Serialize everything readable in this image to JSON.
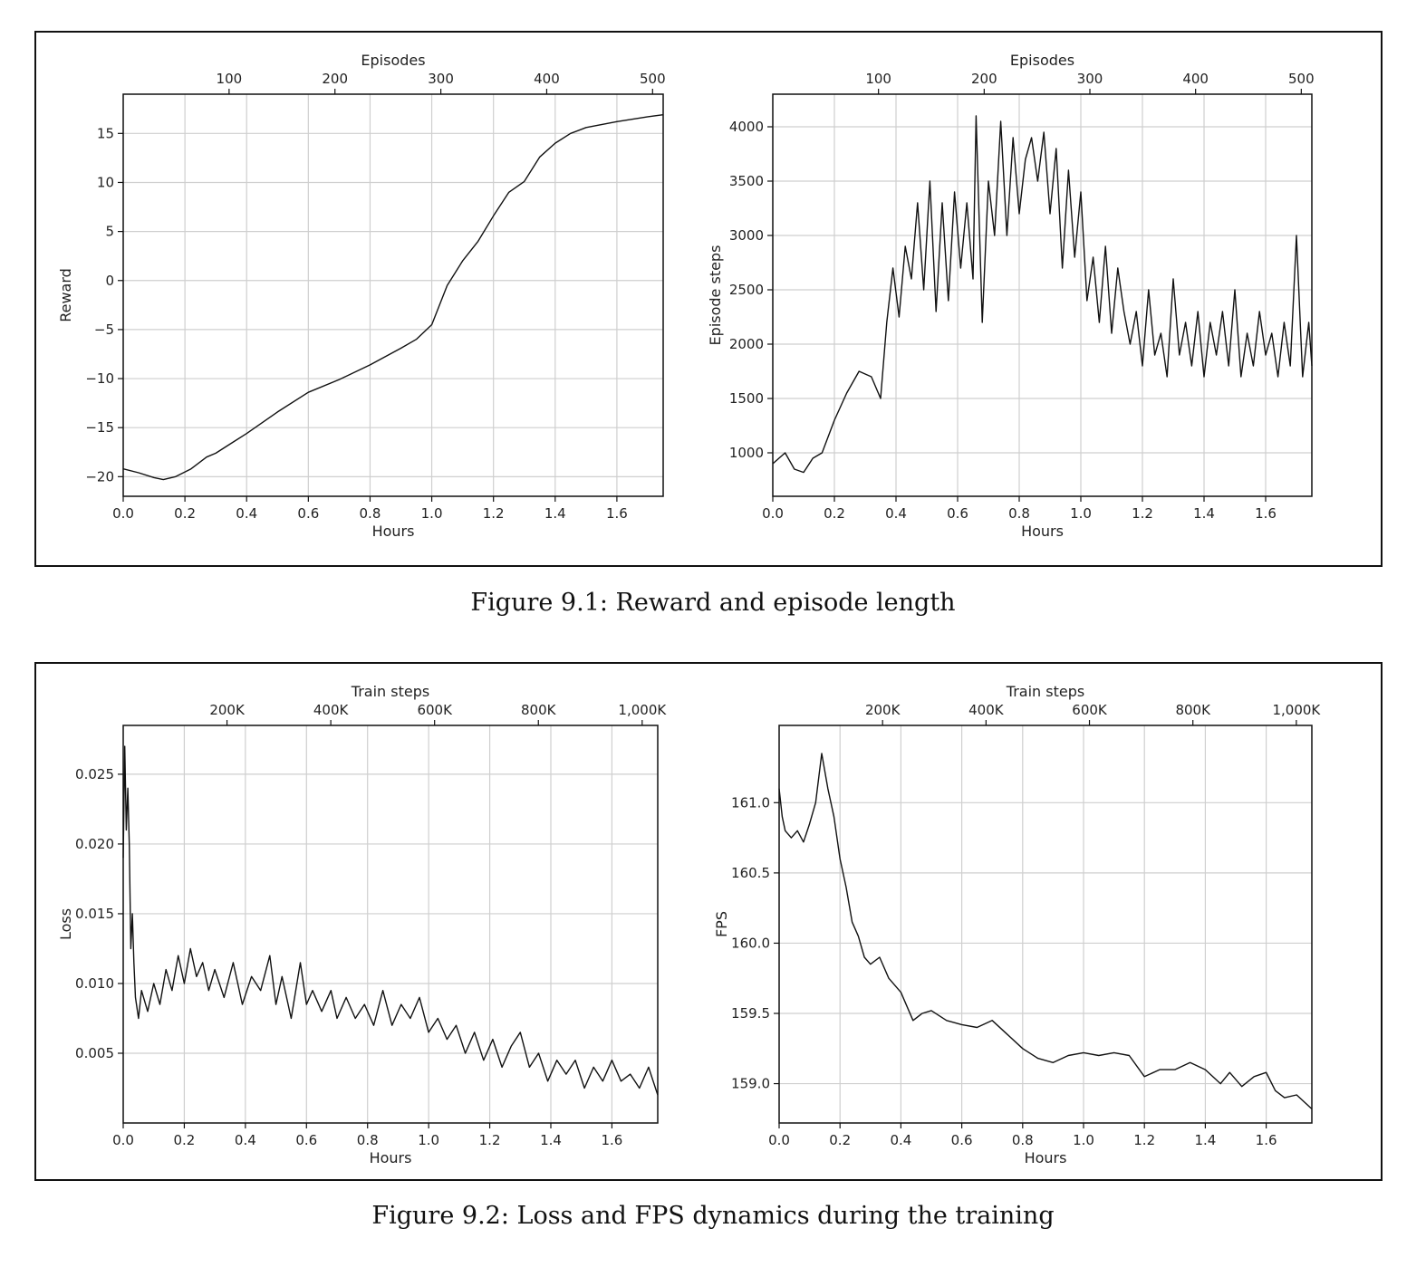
{
  "figures": [
    {
      "caption": "Figure 9.1: Reward and episode length"
    },
    {
      "caption": "Figure 9.2: Loss and FPS dynamics during the training"
    }
  ],
  "chart_data": [
    {
      "type": "line",
      "xlabel": "Hours",
      "ylabel": "Reward",
      "xlim": [
        0,
        1.75
      ],
      "ylim": [
        -22,
        19
      ],
      "xticks": [
        "0.0",
        "0.2",
        "0.4",
        "0.6",
        "0.8",
        "1.0",
        "1.2",
        "1.4",
        "1.6"
      ],
      "yticks": [
        "15",
        "10",
        "5",
        "0",
        "−5",
        "−10",
        "−15",
        "−20"
      ],
      "top_axis": {
        "label": "Episodes",
        "ticks": [
          "100",
          "200",
          "300",
          "400",
          "500"
        ],
        "range": [
          0,
          510
        ]
      },
      "grid": true,
      "series": [
        {
          "x": [
            0,
            0.05,
            0.1,
            0.13,
            0.17,
            0.22,
            0.27,
            0.3,
            0.35,
            0.4,
            0.5,
            0.6,
            0.7,
            0.8,
            0.9,
            0.95,
            1.0,
            1.05,
            1.1,
            1.15,
            1.2,
            1.25,
            1.3,
            1.35,
            1.4,
            1.45,
            1.5,
            1.6,
            1.7,
            1.75
          ],
          "y": [
            -19.2,
            -19.6,
            -20.1,
            -20.3,
            -20.0,
            -19.2,
            -18.0,
            -17.6,
            -16.6,
            -15.6,
            -13.4,
            -11.4,
            -10.1,
            -8.6,
            -6.9,
            -6.0,
            -4.5,
            -0.5,
            2.0,
            4.0,
            6.6,
            9.0,
            10.1,
            12.6,
            14.0,
            15.0,
            15.6,
            16.2,
            16.7,
            16.9
          ]
        }
      ]
    },
    {
      "type": "line",
      "xlabel": "Hours",
      "ylabel": "Episode steps",
      "xlim": [
        0,
        1.75
      ],
      "ylim": [
        600,
        4300
      ],
      "xticks": [
        "0.0",
        "0.2",
        "0.4",
        "0.6",
        "0.8",
        "1.0",
        "1.2",
        "1.4",
        "1.6"
      ],
      "yticks": [
        "4000",
        "3500",
        "3000",
        "2500",
        "2000",
        "1500",
        "1000"
      ],
      "top_axis": {
        "label": "Episodes",
        "ticks": [
          "100",
          "200",
          "300",
          "400",
          "500"
        ],
        "range": [
          0,
          510
        ]
      },
      "grid": true,
      "series": [
        {
          "x": [
            0,
            0.04,
            0.07,
            0.1,
            0.13,
            0.16,
            0.2,
            0.24,
            0.28,
            0.32,
            0.35,
            0.37,
            0.39,
            0.41,
            0.43,
            0.45,
            0.47,
            0.49,
            0.51,
            0.53,
            0.55,
            0.57,
            0.59,
            0.61,
            0.63,
            0.65,
            0.66,
            0.68,
            0.7,
            0.72,
            0.74,
            0.76,
            0.78,
            0.8,
            0.82,
            0.84,
            0.86,
            0.88,
            0.9,
            0.92,
            0.94,
            0.96,
            0.98,
            1.0,
            1.02,
            1.04,
            1.06,
            1.08,
            1.1,
            1.12,
            1.14,
            1.16,
            1.18,
            1.2,
            1.22,
            1.24,
            1.26,
            1.28,
            1.3,
            1.32,
            1.34,
            1.36,
            1.38,
            1.4,
            1.42,
            1.44,
            1.46,
            1.48,
            1.5,
            1.52,
            1.54,
            1.56,
            1.58,
            1.6,
            1.62,
            1.64,
            1.66,
            1.68,
            1.7,
            1.72,
            1.74,
            1.75
          ],
          "y": [
            900,
            1000,
            850,
            820,
            950,
            1000,
            1300,
            1550,
            1750,
            1700,
            1500,
            2200,
            2700,
            2250,
            2900,
            2600,
            3300,
            2500,
            3500,
            2300,
            3300,
            2400,
            3400,
            2700,
            3300,
            2600,
            4100,
            2200,
            3500,
            3000,
            4050,
            3000,
            3900,
            3200,
            3700,
            3900,
            3500,
            3950,
            3200,
            3800,
            2700,
            3600,
            2800,
            3400,
            2400,
            2800,
            2200,
            2900,
            2100,
            2700,
            2300,
            2000,
            2300,
            1800,
            2500,
            1900,
            2100,
            1700,
            2600,
            1900,
            2200,
            1800,
            2300,
            1700,
            2200,
            1900,
            2300,
            1800,
            2500,
            1700,
            2100,
            1800,
            2300,
            1900,
            2100,
            1700,
            2200,
            1800,
            3000,
            1700,
            2200,
            1800
          ]
        }
      ]
    },
    {
      "type": "line",
      "xlabel": "Hours",
      "ylabel": "Loss",
      "xlim": [
        0,
        1.75
      ],
      "ylim": [
        0,
        0.0285
      ],
      "xticks": [
        "0.0",
        "0.2",
        "0.4",
        "0.6",
        "0.8",
        "1.0",
        "1.2",
        "1.4",
        "1.6"
      ],
      "yticks": [
        "0.025",
        "0.020",
        "0.015",
        "0.010",
        "0.005"
      ],
      "top_axis": {
        "label": "Train steps",
        "ticks": [
          "200K",
          "400K",
          "600K",
          "800K",
          "1,000K"
        ],
        "range": [
          0,
          1030000
        ]
      },
      "grid": true,
      "series": [
        {
          "x": [
            0,
            0.005,
            0.01,
            0.015,
            0.02,
            0.025,
            0.03,
            0.035,
            0.04,
            0.05,
            0.06,
            0.08,
            0.1,
            0.12,
            0.14,
            0.16,
            0.18,
            0.2,
            0.22,
            0.24,
            0.26,
            0.28,
            0.3,
            0.33,
            0.36,
            0.39,
            0.42,
            0.45,
            0.48,
            0.5,
            0.52,
            0.55,
            0.58,
            0.6,
            0.62,
            0.65,
            0.68,
            0.7,
            0.73,
            0.76,
            0.79,
            0.82,
            0.85,
            0.88,
            0.91,
            0.94,
            0.97,
            1.0,
            1.03,
            1.06,
            1.09,
            1.12,
            1.15,
            1.18,
            1.21,
            1.24,
            1.27,
            1.3,
            1.33,
            1.36,
            1.39,
            1.42,
            1.45,
            1.48,
            1.51,
            1.54,
            1.57,
            1.6,
            1.63,
            1.66,
            1.69,
            1.72,
            1.75
          ],
          "y": [
            0.019,
            0.027,
            0.021,
            0.024,
            0.02,
            0.0125,
            0.015,
            0.0115,
            0.009,
            0.0075,
            0.0095,
            0.008,
            0.01,
            0.0085,
            0.011,
            0.0095,
            0.012,
            0.01,
            0.0125,
            0.0105,
            0.0115,
            0.0095,
            0.011,
            0.009,
            0.0115,
            0.0085,
            0.0105,
            0.0095,
            0.012,
            0.0085,
            0.0105,
            0.0075,
            0.0115,
            0.0085,
            0.0095,
            0.008,
            0.0095,
            0.0075,
            0.009,
            0.0075,
            0.0085,
            0.007,
            0.0095,
            0.007,
            0.0085,
            0.0075,
            0.009,
            0.0065,
            0.0075,
            0.006,
            0.007,
            0.005,
            0.0065,
            0.0045,
            0.006,
            0.004,
            0.0055,
            0.0065,
            0.004,
            0.005,
            0.003,
            0.0045,
            0.0035,
            0.0045,
            0.0025,
            0.004,
            0.003,
            0.0045,
            0.003,
            0.0035,
            0.0025,
            0.004,
            0.002
          ]
        }
      ]
    },
    {
      "type": "line",
      "xlabel": "Hours",
      "ylabel": "FPS",
      "xlim": [
        0,
        1.75
      ],
      "ylim": [
        158.72,
        161.55
      ],
      "xticks": [
        "0.0",
        "0.2",
        "0.4",
        "0.6",
        "0.8",
        "1.0",
        "1.2",
        "1.4",
        "1.6"
      ],
      "yticks": [
        "161.0",
        "160.5",
        "160.0",
        "159.5",
        "159.0"
      ],
      "top_axis": {
        "label": "Train steps",
        "ticks": [
          "200K",
          "400K",
          "600K",
          "800K",
          "1,000K"
        ],
        "range": [
          0,
          1030000
        ]
      },
      "grid": true,
      "series": [
        {
          "x": [
            0,
            0.01,
            0.02,
            0.04,
            0.06,
            0.08,
            0.1,
            0.12,
            0.14,
            0.16,
            0.18,
            0.2,
            0.22,
            0.24,
            0.26,
            0.28,
            0.3,
            0.33,
            0.36,
            0.4,
            0.44,
            0.47,
            0.5,
            0.55,
            0.6,
            0.65,
            0.7,
            0.75,
            0.8,
            0.85,
            0.9,
            0.95,
            1.0,
            1.05,
            1.1,
            1.15,
            1.2,
            1.25,
            1.3,
            1.35,
            1.4,
            1.45,
            1.48,
            1.52,
            1.56,
            1.6,
            1.63,
            1.66,
            1.7,
            1.75
          ],
          "y": [
            161.1,
            160.9,
            160.8,
            160.75,
            160.8,
            160.72,
            160.85,
            161.0,
            161.35,
            161.1,
            160.9,
            160.6,
            160.4,
            160.15,
            160.05,
            159.9,
            159.85,
            159.9,
            159.75,
            159.65,
            159.45,
            159.5,
            159.52,
            159.45,
            159.42,
            159.4,
            159.45,
            159.35,
            159.25,
            159.18,
            159.15,
            159.2,
            159.22,
            159.2,
            159.22,
            159.2,
            159.05,
            159.1,
            159.1,
            159.15,
            159.1,
            159.0,
            159.08,
            158.98,
            159.05,
            159.08,
            158.95,
            158.9,
            158.92,
            158.82
          ]
        }
      ]
    }
  ]
}
